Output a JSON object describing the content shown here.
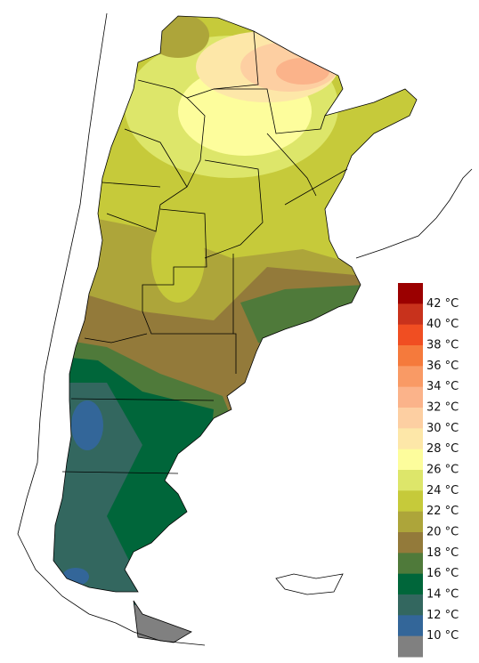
{
  "legend": {
    "labels": [
      "42 °C",
      "40 °C",
      "38 °C",
      "36 °C",
      "34 °C",
      "32 °C",
      "30 °C",
      "28 °C",
      "26 °C",
      "24 °C",
      "22 °C",
      "20 °C",
      "18 °C",
      "16 °C",
      "14 °C",
      "12 °C",
      "10 °C"
    ],
    "colors": [
      "#9b0000",
      "#c8321c",
      "#f04e22",
      "#f57a3c",
      "#f99a65",
      "#fbb38a",
      "#fdcfa2",
      "#fde7a8",
      "#fdfd9c",
      "#dde66a",
      "#c6ca3a",
      "#ada53a",
      "#937a3a",
      "#4f7a3a",
      "#00663a",
      "#33675f",
      "#336699",
      "#808080"
    ]
  }
}
